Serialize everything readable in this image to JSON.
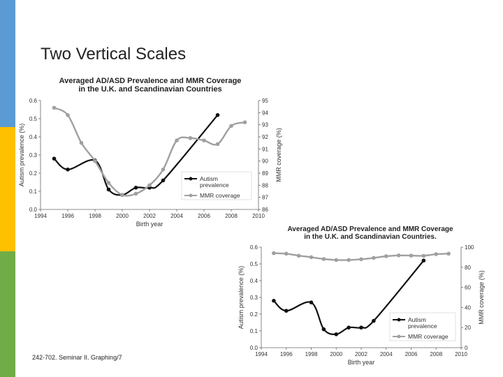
{
  "slide": {
    "title": "Two Vertical Scales",
    "footer": "242-702. Seminar II. Graphing/7"
  },
  "colors": {
    "autism": "#111111",
    "mmr": "#a0a0a0",
    "bar_blue": "#5b9bd5",
    "bar_yellow": "#ffc000",
    "bar_green": "#70ad47"
  },
  "chart_data": [
    {
      "type": "line",
      "title": "Averaged AD/ASD Prevalence and MMR Coverage",
      "subtitle": "in the U.K. and Scandinavian Countries",
      "xlabel": "Birth year",
      "ylabel": "Autism prevalence (%)",
      "y2label": "MMR coverage (%)",
      "xlim": [
        1994,
        2010
      ],
      "xticks": [
        "1994",
        "1996",
        "1998",
        "2000",
        "2002",
        "2004",
        "2006",
        "2008",
        "2010"
      ],
      "ylim": [
        0,
        0.6
      ],
      "yticks": [
        "0.0",
        "0.1",
        "0.2",
        "0.3",
        "0.4",
        "0.5",
        "0.6"
      ],
      "y2lim": [
        86,
        95
      ],
      "y2ticks": [
        "86",
        "87",
        "88",
        "89",
        "90",
        "91",
        "92",
        "93",
        "94",
        "95"
      ],
      "legend_position": "lower-right",
      "series": [
        {
          "name": "Autism prevalence",
          "axis": "left",
          "x": [
            1995,
            1996,
            1998,
            1999,
            2000,
            2001,
            2002,
            2003,
            2007
          ],
          "y": [
            0.28,
            0.22,
            0.27,
            0.11,
            0.08,
            0.12,
            0.12,
            0.16,
            0.52
          ]
        },
        {
          "name": "MMR coverage",
          "axis": "right",
          "x": [
            1995,
            1996,
            1997,
            1998,
            1999,
            2000,
            2001,
            2002,
            2003,
            2004,
            2005,
            2006,
            2007,
            2008,
            2009
          ],
          "y": [
            94.4,
            93.8,
            91.5,
            90.0,
            88.2,
            87.2,
            87.3,
            88.0,
            89.3,
            91.7,
            91.9,
            91.7,
            91.4,
            92.9,
            93.2
          ]
        }
      ]
    },
    {
      "type": "line",
      "title": "Averaged AD/ASD Prevalence and MMR Coverage",
      "subtitle": "in the U.K. and Scandinavian Countries.",
      "xlabel": "Birth year",
      "ylabel": "Autism prevalence (%)",
      "y2label": "MMR coverage (%)",
      "xlim": [
        1994,
        2010
      ],
      "xticks": [
        "1994",
        "1996",
        "1998",
        "2000",
        "2002",
        "2004",
        "2006",
        "2008",
        "2010"
      ],
      "ylim": [
        0,
        0.6
      ],
      "yticks": [
        "0.0",
        "0.1",
        "0.2",
        "0.3",
        "0.4",
        "0.5",
        "0.6"
      ],
      "y2lim": [
        0,
        100
      ],
      "y2ticks": [
        "0",
        "20",
        "40",
        "60",
        "80",
        "100"
      ],
      "legend_position": "lower-right",
      "series": [
        {
          "name": "Autism prevalence",
          "axis": "left",
          "x": [
            1995,
            1996,
            1998,
            1999,
            2000,
            2001,
            2002,
            2003,
            2007
          ],
          "y": [
            0.28,
            0.22,
            0.27,
            0.11,
            0.08,
            0.12,
            0.12,
            0.16,
            0.52
          ]
        },
        {
          "name": "MMR coverage",
          "axis": "right",
          "x": [
            1995,
            1996,
            1997,
            1998,
            1999,
            2000,
            2001,
            2002,
            2003,
            2004,
            2005,
            2006,
            2007,
            2008,
            2009
          ],
          "y": [
            94,
            93.5,
            91.5,
            90,
            88.2,
            87.2,
            87.2,
            88,
            89.3,
            91,
            91.8,
            91.6,
            91.4,
            93,
            93.5
          ]
        }
      ]
    }
  ]
}
